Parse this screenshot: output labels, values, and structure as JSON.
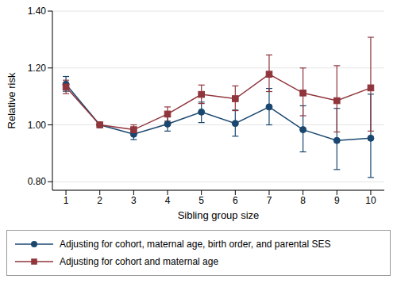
{
  "chart_data": {
    "type": "line",
    "x_label": "Sibling group size",
    "y_label": "Relative risk",
    "x": [
      1,
      2,
      3,
      4,
      5,
      6,
      7,
      8,
      9,
      10
    ],
    "xlim": [
      0.6,
      10.4
    ],
    "xticks": [
      1,
      2,
      3,
      4,
      5,
      6,
      7,
      8,
      9,
      10
    ],
    "ylim": [
      0.77,
      1.4
    ],
    "yticks": [
      {
        "value": 0.8,
        "label": "0.80"
      },
      {
        "value": 1.0,
        "label": "1.00"
      },
      {
        "value": 1.2,
        "label": "1.20"
      },
      {
        "value": 1.4,
        "label": "1.40"
      }
    ],
    "grid": true,
    "legend": "bottom",
    "series": [
      {
        "name": "Adjusting for cohort, maternal age, birth order, and parental SES",
        "color": "#1a476f",
        "marker": "circle",
        "line_style": "solid",
        "values": [
          1.143,
          1.0,
          0.967,
          1.003,
          1.045,
          1.005,
          1.063,
          0.983,
          0.945,
          0.953
        ],
        "ci_low": [
          1.118,
          null,
          0.948,
          0.978,
          1.008,
          0.96,
          1.0,
          0.905,
          0.843,
          0.815
        ],
        "ci_high": [
          1.17,
          null,
          0.985,
          1.028,
          1.08,
          1.052,
          1.128,
          1.067,
          1.058,
          1.108
        ]
      },
      {
        "name": "Adjusting for cohort and maternal age",
        "color": "#90353b",
        "marker": "square",
        "line_style": "solid",
        "values": [
          1.133,
          1.0,
          0.983,
          1.038,
          1.107,
          1.092,
          1.178,
          1.112,
          1.085,
          1.13
        ],
        "ci_low": [
          1.11,
          null,
          0.965,
          1.013,
          1.075,
          1.05,
          1.117,
          1.032,
          0.975,
          0.978
        ],
        "ci_high": [
          1.157,
          null,
          1.0,
          1.063,
          1.14,
          1.137,
          1.246,
          1.2,
          1.208,
          1.308
        ]
      }
    ]
  }
}
